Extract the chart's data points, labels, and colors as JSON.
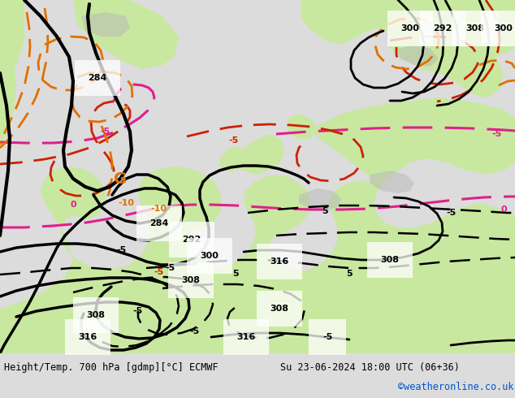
{
  "title_left": "Height/Temp. 700 hPa [gdmp][°C] ECMWF",
  "title_right": "Su 23-06-2024 18:00 UTC (06+36)",
  "credit": "©weatheronline.co.uk",
  "bg_map": "#e8e8e8",
  "bg_sea": "#d0d0d0",
  "bg_land_green": "#c8e8a0",
  "bg_land_grey": "#b8b8b8",
  "footer_bg": "#dcdcdc",
  "footer_text": "#000000",
  "credit_color": "#0055cc"
}
